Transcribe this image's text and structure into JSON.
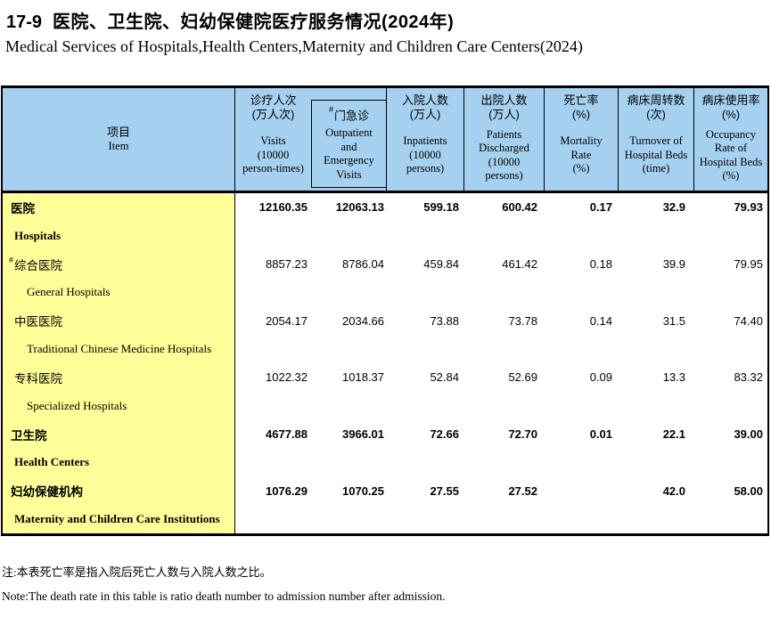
{
  "page": {
    "title_no": "17-9",
    "title_zh": "医院、卫生院、妇幼保健院医疗服务情况(2024年)",
    "title_en": "Medical Services of Hospitals,Health Centers,Maternity and Children Care Centers(2024)",
    "note_zh": "注:本表死亡率是指入院后死亡人数与入院人数之比。",
    "note_en": "Note:The death rate in this table is ratio death number to admission number after admission."
  },
  "colors": {
    "header_bg": "#A6D0F0",
    "item_bg": "#FFFF99",
    "border": "#000000"
  },
  "header": {
    "item": {
      "zh": "项目",
      "en": "Item"
    },
    "cols": [
      {
        "zh": "诊疗人次\n(万人次)",
        "en": "Visits\n(10000\nperson-times)"
      },
      {
        "hash": "#",
        "zh": "门急诊",
        "en": "Outpatient\nand\nEmergency\nVisits"
      },
      {
        "zh": "入院人数\n(万人)",
        "en": "Inpatients\n(10000\npersons)"
      },
      {
        "zh": "出院人数\n(万人)",
        "en": "Patients\nDischarged\n(10000\npersons)"
      },
      {
        "zh": "死亡率\n(%)",
        "en": "Mortality\nRate\n(%)"
      },
      {
        "zh": "病床周转数\n(次)",
        "en": "Turnover of\nHospital Beds\n(time)"
      },
      {
        "zh": "病床使用率\n(%)",
        "en": "Occupancy\nRate of\nHospital Beds\n(%)"
      }
    ]
  },
  "rows": [
    {
      "zh": "医院",
      "en": "Hospitals",
      "values": [
        "12160.35",
        "12063.13",
        "599.18",
        "600.42",
        "0.17",
        "32.9",
        "79.93"
      ]
    },
    {
      "hash": "#",
      "zh": "综合医院",
      "en": "General Hospitals",
      "values": [
        "8857.23",
        "8786.04",
        "459.84",
        "461.42",
        "0.18",
        "39.9",
        "79.95"
      ]
    },
    {
      "zh": "中医医院",
      "en": "Traditional Chinese Medicine Hospitals",
      "values": [
        "2054.17",
        "2034.66",
        "73.88",
        "73.78",
        "0.14",
        "31.5",
        "74.40"
      ]
    },
    {
      "zh": "专科医院",
      "en": "Specialized Hospitals",
      "values": [
        "1022.32",
        "1018.37",
        "52.84",
        "52.69",
        "0.09",
        "13.3",
        "83.32"
      ]
    },
    {
      "zh": "卫生院",
      "en": "Health Centers",
      "values": [
        "4677.88",
        "3966.01",
        "72.66",
        "72.70",
        "0.01",
        "22.1",
        "39.00"
      ]
    },
    {
      "zh": "妇幼保健机构",
      "en": "Maternity and Children Care Institutions",
      "values": [
        "1076.29",
        "1070.25",
        "27.55",
        "27.52",
        "",
        "42.0",
        "58.00"
      ]
    }
  ]
}
